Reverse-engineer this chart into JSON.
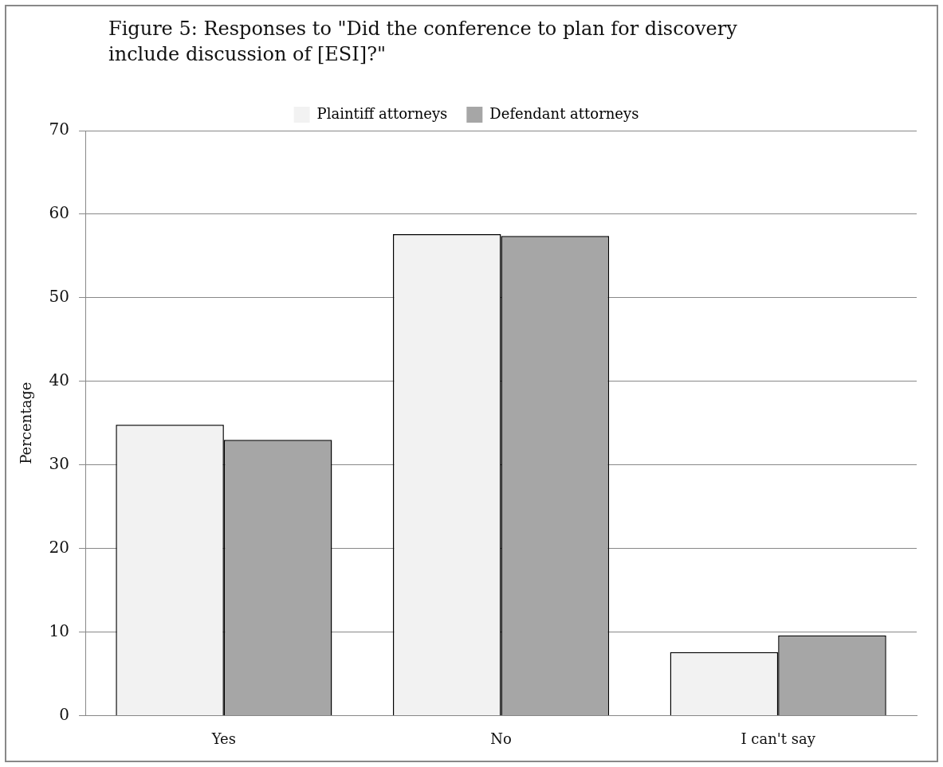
{
  "chart_data": {
    "type": "bar",
    "title": "Figure 5: Responses to \"Did the conference to plan for discovery include discussion of [ESI]?\"",
    "ylabel": "Percentage",
    "categories": [
      "Yes",
      "No",
      "I can't say"
    ],
    "series": [
      {
        "name": "Plaintiff attorneys",
        "color": "#f2f2f2",
        "values": [
          34.8,
          57.6,
          7.6
        ]
      },
      {
        "name": "Defendant attorneys",
        "color": "#a6a6a6",
        "values": [
          33.0,
          57.4,
          9.6
        ]
      }
    ],
    "ylim": [
      0,
      70
    ],
    "yticks": [
      0,
      10,
      20,
      30,
      40,
      50,
      60,
      70
    ],
    "grid": "y",
    "legend": "top"
  }
}
